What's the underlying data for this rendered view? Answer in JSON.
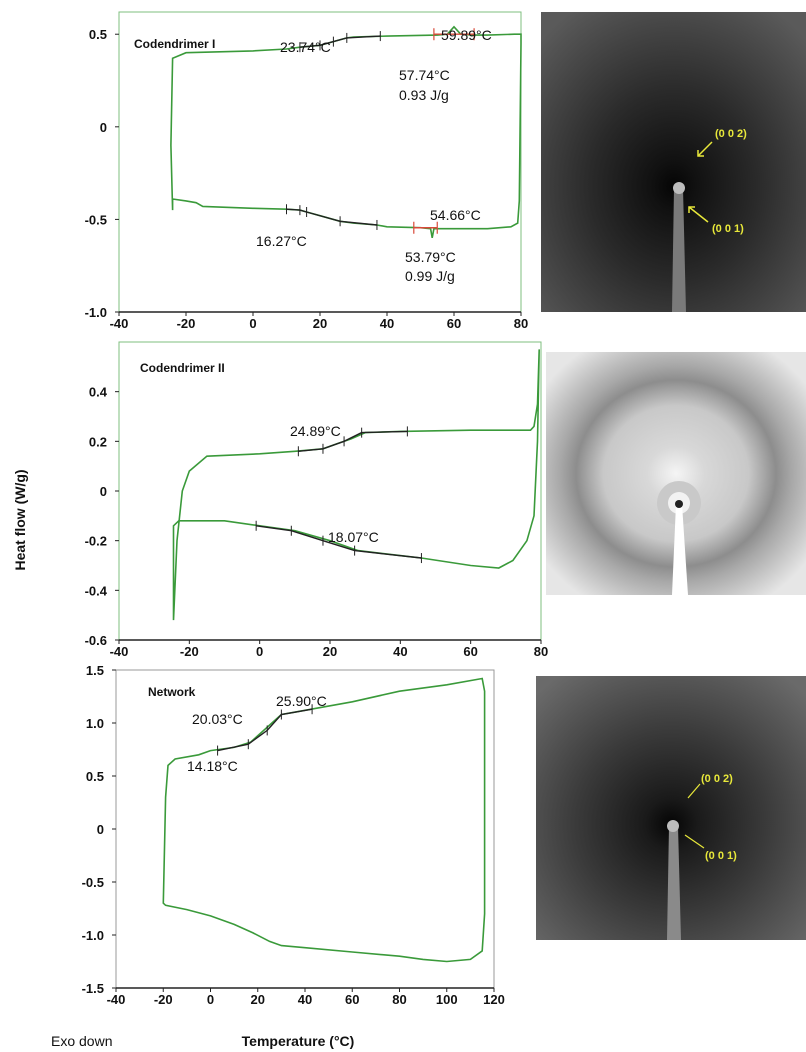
{
  "figure": {
    "ylabel": "Heat flow (W/g)",
    "xlabel": "Temperature (°C)",
    "footnote": "Exo down"
  },
  "colors": {
    "curve": "#3a9a3a",
    "transition": "#222222",
    "peak_marker": "#d94a3a",
    "xrd_label": "#e8e83a"
  },
  "chart_data": [
    {
      "type": "line",
      "title": "Codendrimer I",
      "xlim": [
        -40,
        80
      ],
      "ylim": [
        -1.0,
        0.5
      ],
      "xticks": [
        "-40",
        "-20",
        "0",
        "20",
        "40",
        "60",
        "80"
      ],
      "yticks": [
        "-1.0",
        "-0.5",
        "0",
        "0.5"
      ],
      "series": [
        {
          "x": [
            -24,
            -24.5,
            -24,
            -20,
            0,
            10,
            14,
            20,
            24,
            28,
            30,
            40,
            55,
            58,
            60,
            62,
            66,
            70,
            78,
            80,
            80,
            79.5,
            79,
            77,
            70,
            60,
            54,
            53.5,
            53,
            50,
            40,
            37,
            30,
            26,
            20,
            16,
            14,
            10,
            0,
            -15,
            -17,
            -20,
            -24
          ],
          "y": [
            -0.45,
            -0.1,
            0.37,
            0.4,
            0.41,
            0.42,
            0.43,
            0.44,
            0.46,
            0.48,
            0.485,
            0.49,
            0.495,
            0.5,
            0.54,
            0.5,
            0.495,
            0.495,
            0.5,
            0.5,
            0.45,
            -0.4,
            -0.52,
            -0.54,
            -0.55,
            -0.55,
            -0.55,
            -0.6,
            -0.55,
            -0.545,
            -0.54,
            -0.53,
            -0.52,
            -0.51,
            -0.48,
            -0.46,
            -0.45,
            -0.445,
            -0.44,
            -0.43,
            -0.41,
            -0.4,
            -0.39
          ]
        }
      ],
      "annotations": [
        "23.74°C",
        "59.89°C",
        "57.74°C",
        "0.93 J/g",
        "16.27°C",
        "54.66°C",
        "53.79°C",
        "0.99 J/g"
      ]
    },
    {
      "type": "line",
      "title": "Codendrimer II",
      "xlim": [
        -40,
        80
      ],
      "ylim": [
        -0.6,
        0.6
      ],
      "xticks": [
        "-40",
        "-20",
        "0",
        "20",
        "40",
        "60",
        "80"
      ],
      "yticks": [
        "-0.6",
        "-0.4",
        "-0.2",
        "0",
        "0.2",
        "0.4"
      ],
      "series": [
        {
          "x": [
            -24.5,
            -23.5,
            -22,
            -20,
            -15,
            0,
            10,
            18,
            22,
            26,
            30,
            40,
            60,
            77,
            78,
            79,
            79.5,
            79,
            78,
            76,
            72,
            68,
            60,
            46,
            40,
            28,
            20,
            10,
            0,
            -10,
            -20,
            -23,
            -24.5
          ],
          "y": [
            -0.52,
            -0.2,
            0.0,
            0.08,
            0.14,
            0.15,
            0.16,
            0.17,
            0.19,
            0.21,
            0.235,
            0.24,
            0.245,
            0.245,
            0.26,
            0.35,
            0.57,
            0.2,
            -0.1,
            -0.2,
            -0.28,
            -0.31,
            -0.3,
            -0.27,
            -0.26,
            -0.24,
            -0.2,
            -0.16,
            -0.14,
            -0.12,
            -0.12,
            -0.12,
            -0.14
          ]
        }
      ],
      "annotations": [
        "24.89°C",
        "18.07°C"
      ]
    },
    {
      "type": "line",
      "title": "Network",
      "xlim": [
        -40,
        120
      ],
      "ylim": [
        -1.5,
        1.5
      ],
      "xticks": [
        "-40",
        "-20",
        "0",
        "20",
        "40",
        "60",
        "80",
        "100",
        "120"
      ],
      "yticks": [
        "-1.5",
        "-1.0",
        "-0.5",
        "0",
        "0.5",
        "1.0",
        "1.5"
      ],
      "series": [
        {
          "x": [
            -20,
            -19,
            -18,
            -15,
            -5,
            0,
            10,
            17,
            22,
            26,
            30,
            35,
            45,
            60,
            80,
            100,
            115,
            116,
            116,
            115,
            110,
            100,
            90,
            80,
            60,
            40,
            30,
            25,
            18,
            10,
            0,
            -10,
            -19,
            -20
          ],
          "y": [
            -0.7,
            0.3,
            0.6,
            0.66,
            0.7,
            0.74,
            0.77,
            0.82,
            0.92,
            1.0,
            1.08,
            1.1,
            1.14,
            1.2,
            1.3,
            1.36,
            1.42,
            1.3,
            -0.8,
            -1.15,
            -1.23,
            -1.25,
            -1.23,
            -1.2,
            -1.16,
            -1.12,
            -1.1,
            -1.06,
            -0.98,
            -0.9,
            -0.82,
            -0.76,
            -0.72,
            -0.7
          ]
        }
      ],
      "annotations": [
        "25.90°C",
        "20.03°C",
        "14.18°C"
      ]
    }
  ],
  "xrd": [
    {
      "labels": [
        "(0 0 2)",
        "(0 0 1)"
      ]
    },
    {
      "labels": []
    },
    {
      "labels": [
        "(0 0 2)",
        "(0 0 1)"
      ]
    }
  ]
}
